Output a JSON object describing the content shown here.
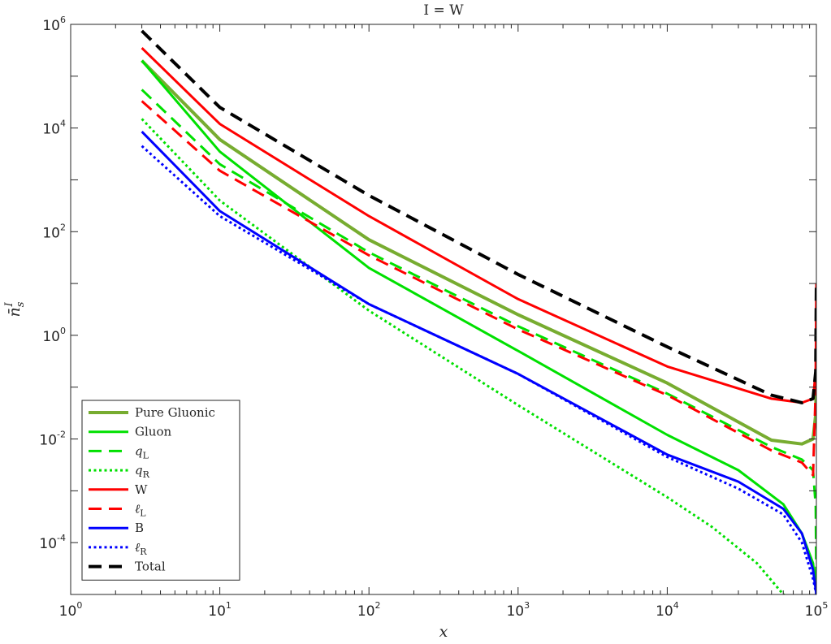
{
  "chart_data": {
    "type": "line",
    "title_main": "I",
    "title_rest": " = W",
    "xlabel": "x",
    "ylabel_base": "n̄",
    "ylabel_sub": "s",
    "ylabel_sup": "I",
    "xscale": "log",
    "yscale": "log",
    "xlim": [
      1,
      100000
    ],
    "ylim": [
      1e-05,
      1000000
    ],
    "grid": false,
    "legend_position": "bottom-left",
    "x_ticks": [
      {
        "base": "10",
        "exp": "0",
        "value": 1
      },
      {
        "base": "10",
        "exp": "1",
        "value": 10
      },
      {
        "base": "10",
        "exp": "2",
        "value": 100
      },
      {
        "base": "10",
        "exp": "3",
        "value": 1000
      },
      {
        "base": "10",
        "exp": "4",
        "value": 10000
      },
      {
        "base": "10",
        "exp": "5",
        "value": 100000
      }
    ],
    "y_ticks": [
      {
        "base": "10",
        "exp": "-4",
        "value": 0.0001
      },
      {
        "base": "10",
        "exp": "-2",
        "value": 0.01
      },
      {
        "base": "10",
        "exp": "0",
        "value": 1
      },
      {
        "base": "10",
        "exp": "2",
        "value": 100
      },
      {
        "base": "10",
        "exp": "4",
        "value": 10000
      },
      {
        "base": "10",
        "exp": "6",
        "value": 1000000
      }
    ],
    "series": [
      {
        "name": "Pure Gluonic",
        "italic": false,
        "sub": "",
        "color": "#77AC30",
        "style": "solid",
        "width": 4,
        "x": [
          3,
          10,
          100,
          1000,
          10000,
          50000,
          80000,
          95000,
          99000,
          100000
        ],
        "y": [
          200000,
          6000,
          70,
          2.5,
          0.12,
          0.0095,
          0.008,
          0.01,
          0.03,
          0.2
        ]
      },
      {
        "name": "Gluon",
        "italic": false,
        "sub": "",
        "color": "#00E000",
        "style": "solid",
        "width": 3,
        "x": [
          3,
          10,
          100,
          1000,
          10000,
          30000,
          60000,
          80000,
          95000,
          100000
        ],
        "y": [
          200000,
          3500,
          20,
          0.5,
          0.012,
          0.0025,
          0.00055,
          0.00015,
          4e-05,
          1e-05
        ]
      },
      {
        "name": "q",
        "italic": true,
        "sub": "L",
        "color": "#00E000",
        "style": "dashed",
        "width": 3,
        "x": [
          3,
          10,
          100,
          1000,
          10000,
          50000,
          80000,
          95000,
          99000,
          100000
        ],
        "y": [
          55000,
          2000,
          40,
          1.5,
          0.075,
          0.007,
          0.004,
          0.0025,
          0.0005,
          1e-05
        ]
      },
      {
        "name": "q",
        "italic": true,
        "sub": "R",
        "color": "#00E000",
        "style": "dotted",
        "width": 3,
        "x": [
          3,
          10,
          100,
          1000,
          10000,
          20000,
          40000,
          60000,
          70000
        ],
        "y": [
          15000,
          400,
          3,
          0.045,
          0.00075,
          0.0002,
          4e-05,
          1e-05,
          8e-06
        ]
      },
      {
        "name": "W",
        "italic": false,
        "sub": "",
        "color": "#FF0000",
        "style": "solid",
        "width": 3,
        "x": [
          3,
          10,
          100,
          1000,
          10000,
          50000,
          80000,
          95000,
          99000,
          100000
        ],
        "y": [
          350000,
          12000,
          200,
          5,
          0.25,
          0.06,
          0.05,
          0.06,
          0.2,
          10
        ]
      },
      {
        "name": "ℓ",
        "italic": true,
        "sub": "L",
        "color": "#FF0000",
        "style": "dashed",
        "width": 3,
        "x": [
          3,
          10,
          100,
          1000,
          10000,
          50000,
          80000,
          95000,
          99000,
          100000
        ],
        "y": [
          33000,
          1500,
          35,
          1.3,
          0.07,
          0.006,
          0.0035,
          0.002,
          0.1,
          8
        ]
      },
      {
        "name": "B",
        "italic": false,
        "sub": "",
        "color": "#0000FF",
        "style": "solid",
        "width": 3,
        "x": [
          3,
          10,
          100,
          1000,
          10000,
          30000,
          60000,
          80000,
          95000,
          100000
        ],
        "y": [
          8500,
          250,
          4,
          0.18,
          0.005,
          0.0015,
          0.00045,
          0.00015,
          3e-05,
          1e-05
        ]
      },
      {
        "name": "ℓ",
        "italic": true,
        "sub": "R",
        "color": "#0000FF",
        "style": "dotted",
        "width": 3,
        "x": [
          3,
          10,
          100,
          1000,
          10000,
          30000,
          60000,
          80000,
          95000,
          100000
        ],
        "y": [
          4500,
          200,
          4,
          0.18,
          0.0045,
          0.0011,
          0.00035,
          0.0001,
          2e-05,
          1e-05
        ]
      },
      {
        "name": "Total",
        "italic": false,
        "sub": "",
        "color": "#000000",
        "style": "dashed",
        "width": 4,
        "x": [
          3,
          10,
          100,
          1000,
          10000,
          50000,
          80000,
          95000,
          99000,
          100000
        ],
        "y": [
          750000,
          25000,
          500,
          15,
          0.6,
          0.07,
          0.05,
          0.06,
          0.2,
          10
        ]
      }
    ]
  }
}
